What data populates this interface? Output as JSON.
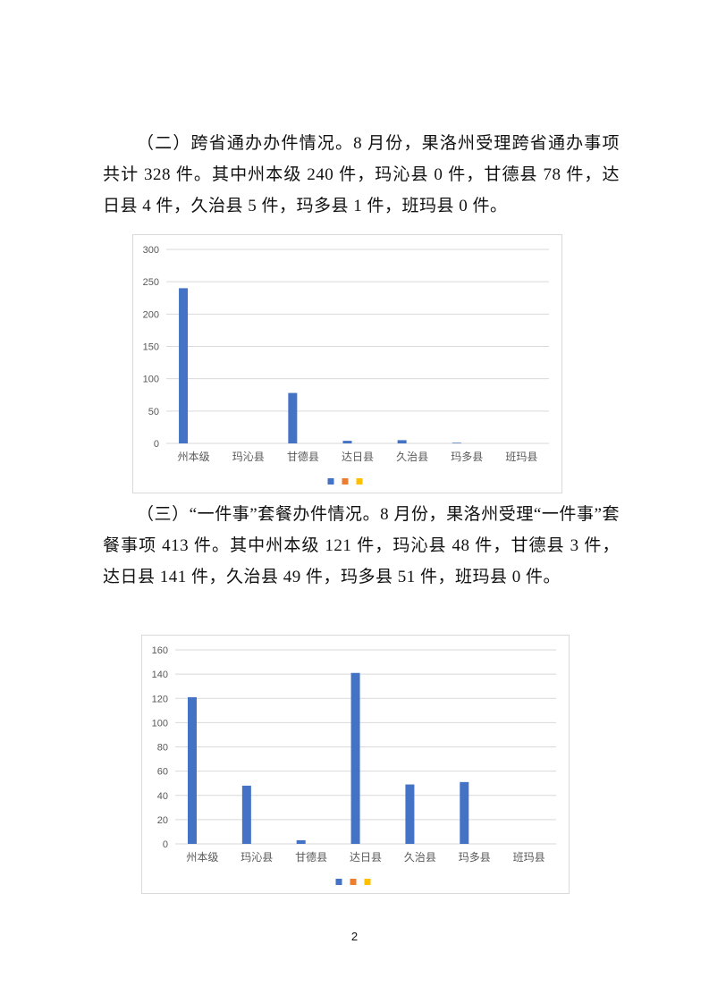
{
  "paragraphs": [
    "（二）跨省通办办件情况。8 月份，果洛州受理跨省通办事项共计 328 件。其中州本级 240 件，玛沁县 0 件，甘德县 78 件，达日县 4 件，久治县 5 件，玛多县 1 件，班玛县 0 件。",
    "（三）“一件事”套餐办件情况。8 月份，果洛州受理“一件事”套餐事项 413 件。其中州本级 121 件，玛沁县 48 件，甘德县 3 件，达日县 141 件，久治县 49 件，玛多县 51 件，班玛县 0 件。"
  ],
  "page_number": "2",
  "chart_data": [
    {
      "type": "bar",
      "title": "",
      "xlabel": "",
      "ylabel": "",
      "categories": [
        "州本级",
        "玛沁县",
        "甘德县",
        "达日县",
        "久治县",
        "玛多县",
        "班玛县"
      ],
      "values": [
        240,
        0,
        78,
        4,
        5,
        1,
        0
      ],
      "ylim": [
        0,
        300
      ],
      "yticks": [
        0,
        50,
        100,
        150,
        200,
        250,
        300
      ],
      "grid": true,
      "legend": "bottom",
      "legend_colors": [
        "#4472c4",
        "#ed7d31",
        "#ffc000"
      ],
      "bar_color": "#4472c4"
    },
    {
      "type": "bar",
      "title": "",
      "xlabel": "",
      "ylabel": "",
      "categories": [
        "州本级",
        "玛沁县",
        "甘德县",
        "达日县",
        "久治县",
        "玛多县",
        "班玛县"
      ],
      "values": [
        121,
        48,
        3,
        141,
        49,
        51,
        0
      ],
      "ylim": [
        0,
        160
      ],
      "yticks": [
        0,
        20,
        40,
        60,
        80,
        100,
        120,
        140,
        160
      ],
      "grid": true,
      "legend": "bottom",
      "legend_colors": [
        "#4472c4",
        "#ed7d31",
        "#ffc000"
      ],
      "bar_color": "#4472c4"
    }
  ]
}
